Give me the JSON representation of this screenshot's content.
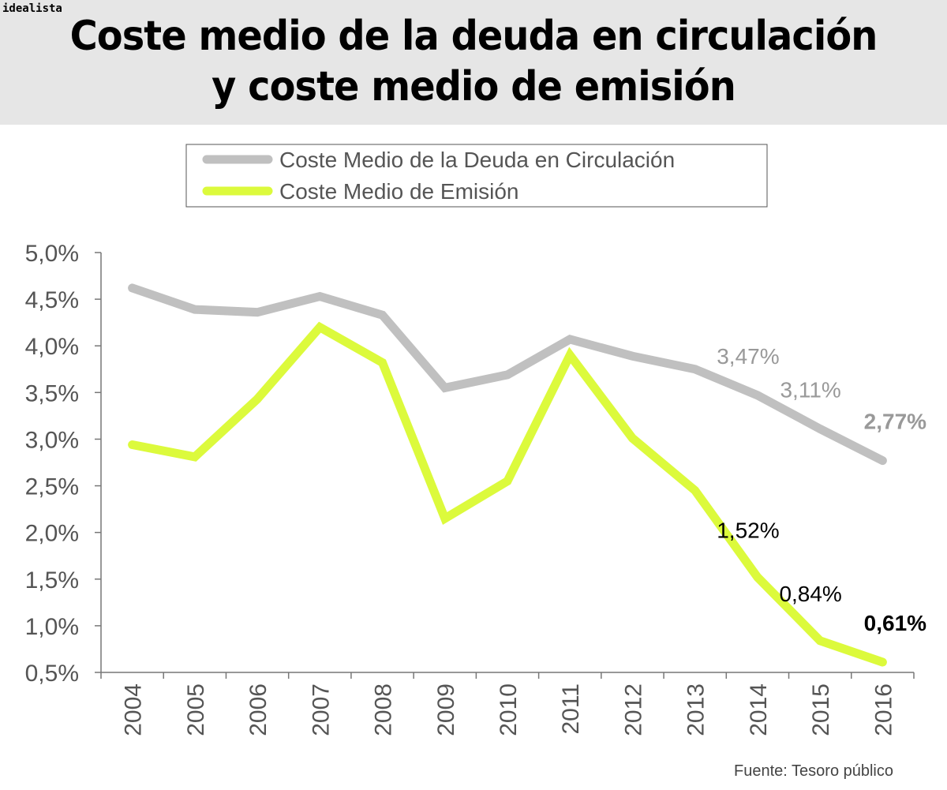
{
  "brand": "idealista",
  "title": [
    "Coste medio de la deuda en circulación",
    "y coste medio de emisión"
  ],
  "source": "Fuente: Tesoro público",
  "chart_data": {
    "type": "line",
    "title": "Coste medio de la deuda en circulación y coste medio de emisión",
    "categories": [
      "2004",
      "2005",
      "2006",
      "2007",
      "2008",
      "2009",
      "2010",
      "2011",
      "2012",
      "2013",
      "2014",
      "2015",
      "2016"
    ],
    "ylim": [
      0.5,
      5.0
    ],
    "yticks": [
      "5,0%",
      "4,5%",
      "4,0%",
      "3,5%",
      "3,0%",
      "2,5%",
      "2,0%",
      "1,5%",
      "1,0%",
      "0,5%"
    ],
    "ytick_values": [
      5.0,
      4.5,
      4.0,
      3.5,
      3.0,
      2.5,
      2.0,
      1.5,
      1.0,
      0.5
    ],
    "grid": false,
    "legend": "top",
    "series": [
      {
        "name": "Coste Medio de la Deuda en Circulación",
        "color": "#c0c0c0",
        "values": [
          4.62,
          4.39,
          4.36,
          4.53,
          4.33,
          3.55,
          3.69,
          4.07,
          3.89,
          3.75,
          3.47,
          3.11,
          2.77
        ],
        "labels": [
          {
            "index": 10,
            "text": "3,47%"
          },
          {
            "index": 11,
            "text": "3,11%"
          },
          {
            "index": 12,
            "text": "2,77%",
            "bold": true
          }
        ]
      },
      {
        "name": "Coste Medio de Emisión",
        "color": "#dcfa3c",
        "values": [
          2.94,
          2.81,
          3.43,
          4.2,
          3.82,
          2.15,
          2.55,
          3.9,
          3.01,
          2.45,
          1.52,
          0.84,
          0.61
        ],
        "labels": [
          {
            "index": 10,
            "text": "1,52%"
          },
          {
            "index": 11,
            "text": "0,84%"
          },
          {
            "index": 12,
            "text": "0,61%",
            "bold": true
          }
        ]
      }
    ]
  }
}
